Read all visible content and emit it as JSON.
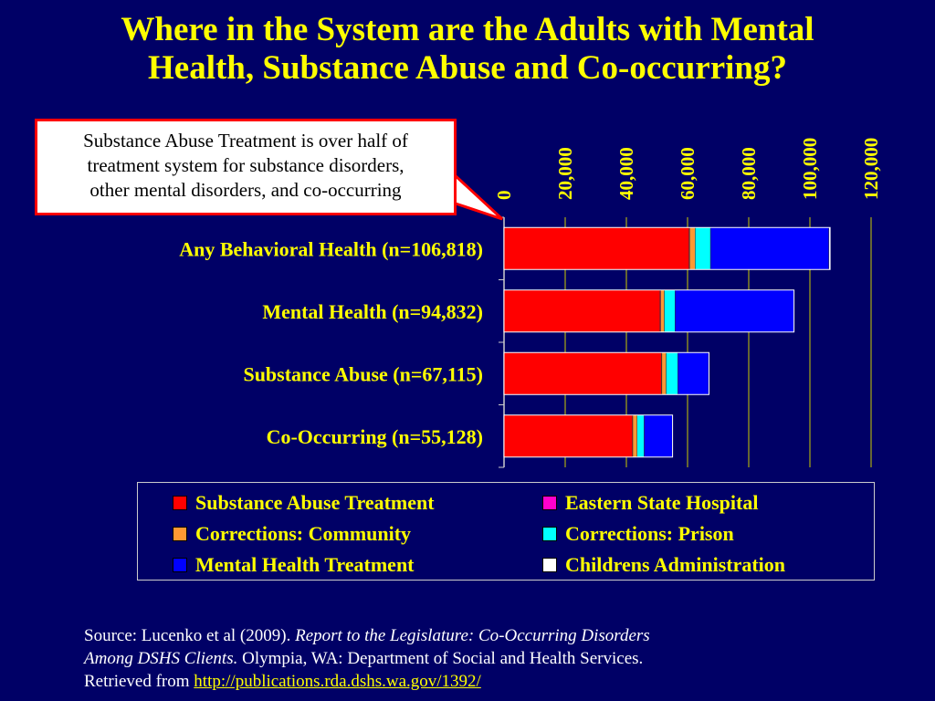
{
  "title": {
    "line1": "Where in the System are the Adults with Mental",
    "line2": "Health, Substance Abuse and Co-occurring?"
  },
  "callout": {
    "line1": "Substance Abuse Treatment is over half of",
    "line2": "treatment system for substance disorders,",
    "line3": "other mental disorders, and co-occurring"
  },
  "chart_data": {
    "type": "bar",
    "orientation": "horizontal",
    "stacked": true,
    "categories": [
      "Any Behavioral Health (n=106,818)",
      "Mental Health (n=94,832)",
      "Substance Abuse (n=67,115)",
      "Co-Occurring (n=55,128)"
    ],
    "series": [
      {
        "name": "Substance Abuse Treatment",
        "color": "#ff0000",
        "values": [
          60500,
          51000,
          51500,
          42000
        ]
      },
      {
        "name": "Eastern State Hospital",
        "color": "#ff00cc",
        "values": [
          200,
          200,
          100,
          100
        ]
      },
      {
        "name": "Corrections: Community",
        "color": "#ff9933",
        "values": [
          1800,
          1200,
          1400,
          1400
        ]
      },
      {
        "name": "Corrections: Prison",
        "color": "#00ffff",
        "values": [
          5000,
          3500,
          3800,
          2300
        ]
      },
      {
        "name": "Mental Health Treatment",
        "color": "#0000ff",
        "values": [
          38700,
          38800,
          10100,
          9200
        ]
      },
      {
        "name": "Childrens Administration",
        "color": "#ffffff",
        "values": [
          400,
          100,
          100,
          100
        ]
      }
    ],
    "x_ticks": [
      "0",
      "20,000",
      "40,000",
      "60,000",
      "80,000",
      "100,000",
      "120,000"
    ],
    "xlim": [
      0,
      120000
    ],
    "grid": true,
    "legend_position": "bottom"
  },
  "legend": {
    "items": [
      {
        "label": "Substance Abuse Treatment",
        "color": "#ff0000"
      },
      {
        "label": "Eastern State Hospital",
        "color": "#ff00cc"
      },
      {
        "label": "Corrections: Community",
        "color": "#ff9933"
      },
      {
        "label": "Corrections: Prison",
        "color": "#00ffff"
      },
      {
        "label": "Mental Health Treatment",
        "color": "#0000ff"
      },
      {
        "label": "Childrens Administration",
        "color": "#ffffff"
      }
    ]
  },
  "source": {
    "prefix": "Source:  Lucenko et al (2009). ",
    "report_title_1": "Report to the Legislature: Co-Occurring Disorders",
    "report_title_2": "Among DSHS Clients.",
    "rest": "  Olympia, WA: Department of Social and Health Services.",
    "retrieved": "Retrieved from ",
    "url": "http://publications.rda.dshs.wa.gov/1392/"
  },
  "colors": {
    "background": "#000066",
    "title": "#ffff00",
    "label": "#ffff00"
  }
}
